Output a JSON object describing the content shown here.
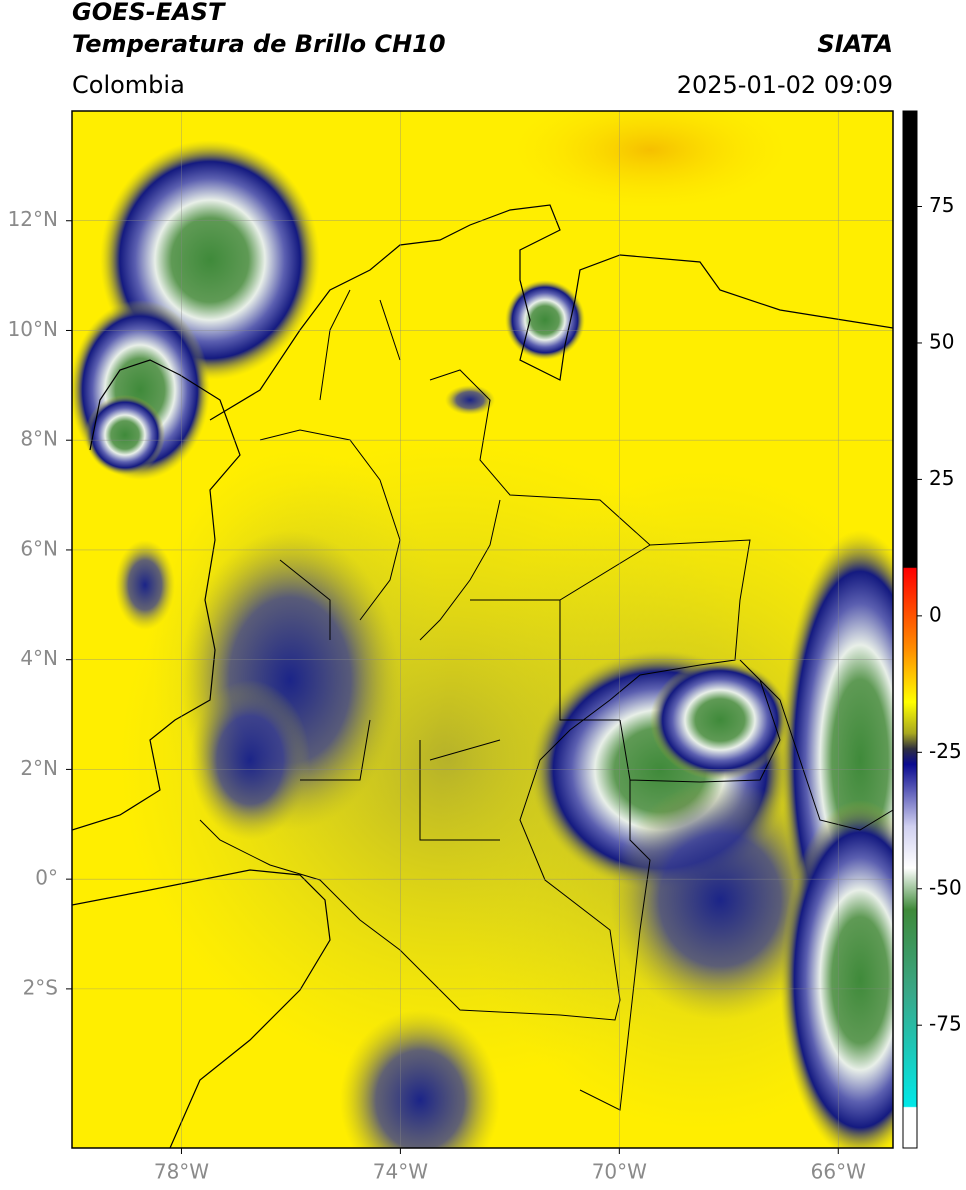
{
  "header": {
    "title": "GOES-EAST",
    "subtitle": "Temperatura de Brillo CH10",
    "source": "SIATA",
    "region": "Colombia",
    "datetime": "2025-01-02 09:09"
  },
  "map": {
    "lonlim": [
      -80,
      -65
    ],
    "latlim": [
      -4.9,
      14
    ],
    "lonticks": [
      {
        "value": -78,
        "label": "78°W"
      },
      {
        "value": -74,
        "label": "74°W"
      },
      {
        "value": -70,
        "label": "70°W"
      },
      {
        "value": -66,
        "label": "66°W"
      }
    ],
    "latticks": [
      {
        "value": 12,
        "label": "12°N"
      },
      {
        "value": 10,
        "label": "10°N"
      },
      {
        "value": 8,
        "label": "8°N"
      },
      {
        "value": 6,
        "label": "6°N"
      },
      {
        "value": 4,
        "label": "4°N"
      },
      {
        "value": 2,
        "label": "2°N"
      },
      {
        "value": 0,
        "label": "0°"
      },
      {
        "value": -2,
        "label": "2°S"
      }
    ],
    "grid": true
  },
  "colorbar": {
    "lim": [
      -97.5,
      92.5
    ],
    "ticks": [
      75,
      50,
      25,
      0,
      -25,
      -50,
      -75
    ]
  }
}
